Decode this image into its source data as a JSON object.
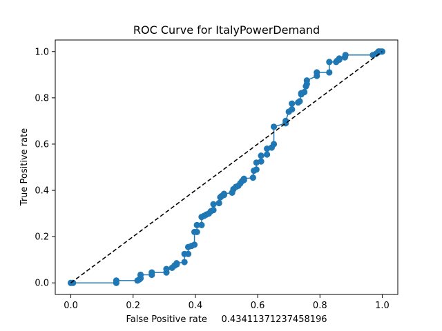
{
  "chart_data": {
    "type": "line",
    "title": "ROC Curve for ItalyPowerDemand",
    "xlabel": "False Positive rate     0.43411371237458196",
    "ylabel": "True Positive rate",
    "xlim": [
      -0.05,
      1.05
    ],
    "ylim": [
      -0.05,
      1.05
    ],
    "xticks": [
      0.0,
      0.2,
      0.4,
      0.6,
      0.8,
      1.0
    ],
    "yticks": [
      0.0,
      0.2,
      0.4,
      0.6,
      0.8,
      1.0
    ],
    "xtick_labels": [
      "0.0",
      "0.2",
      "0.4",
      "0.6",
      "0.8",
      "1.0"
    ],
    "ytick_labels": [
      "0.0",
      "0.2",
      "0.4",
      "0.6",
      "0.8",
      "1.0"
    ],
    "grid": false,
    "legend": "none",
    "series": [
      {
        "style": "step-markers",
        "color": "#1f77b4",
        "x": [
          0.0,
          0.007,
          0.146,
          0.146,
          0.214,
          0.22,
          0.224,
          0.224,
          0.26,
          0.26,
          0.307,
          0.307,
          0.325,
          0.333,
          0.34,
          0.34,
          0.365,
          0.365,
          0.377,
          0.377,
          0.388,
          0.397,
          0.397,
          0.405,
          0.405,
          0.42,
          0.42,
          0.428,
          0.435,
          0.443,
          0.45,
          0.458,
          0.458,
          0.476,
          0.48,
          0.484,
          0.492,
          0.492,
          0.518,
          0.522,
          0.53,
          0.538,
          0.544,
          0.55,
          0.556,
          0.556,
          0.585,
          0.588,
          0.596,
          0.596,
          0.611,
          0.611,
          0.63,
          0.63,
          0.645,
          0.652,
          0.652,
          0.69,
          0.69,
          0.7,
          0.71,
          0.71,
          0.73,
          0.735,
          0.74,
          0.74,
          0.75,
          0.755,
          0.758,
          0.758,
          0.79,
          0.79,
          0.83,
          0.83,
          0.852,
          0.855,
          0.862,
          0.862,
          0.88,
          0.882,
          0.97,
          0.98,
          0.985,
          0.988,
          0.99,
          0.995,
          1.0
        ],
        "y": [
          0.0,
          0.0,
          0.0,
          0.01,
          0.01,
          0.015,
          0.02,
          0.035,
          0.035,
          0.045,
          0.045,
          0.06,
          0.065,
          0.075,
          0.08,
          0.085,
          0.09,
          0.125,
          0.125,
          0.155,
          0.16,
          0.165,
          0.22,
          0.22,
          0.25,
          0.25,
          0.285,
          0.29,
          0.295,
          0.3,
          0.31,
          0.315,
          0.34,
          0.345,
          0.37,
          0.375,
          0.38,
          0.385,
          0.39,
          0.405,
          0.415,
          0.42,
          0.43,
          0.44,
          0.445,
          0.45,
          0.455,
          0.485,
          0.49,
          0.52,
          0.525,
          0.55,
          0.555,
          0.58,
          0.585,
          0.6,
          0.675,
          0.69,
          0.7,
          0.74,
          0.75,
          0.775,
          0.78,
          0.785,
          0.815,
          0.82,
          0.825,
          0.85,
          0.86,
          0.875,
          0.895,
          0.91,
          0.91,
          0.955,
          0.955,
          0.96,
          0.965,
          0.97,
          0.975,
          0.985,
          0.985,
          0.99,
          0.995,
          1.0,
          1.0,
          1.0,
          1.0
        ]
      },
      {
        "style": "dashed",
        "color": "#000000",
        "x": [
          0.0,
          1.0
        ],
        "y": [
          0.0,
          1.0
        ]
      }
    ]
  }
}
